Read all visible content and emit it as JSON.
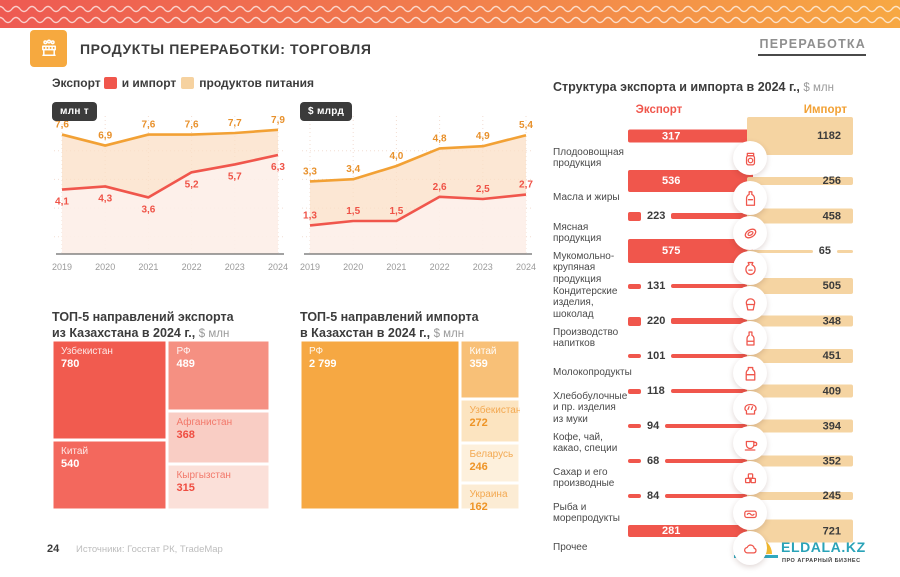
{
  "page": {
    "header": {
      "title": "ПРОДУКТЫ ПЕРЕРАБОТКИ: ТОРГОВЛЯ",
      "section_label": "ПЕРЕРАБОТКА"
    },
    "legend": {
      "export": "Экспорт",
      "mid": "и импорт",
      "tail": "продуктов питания"
    },
    "footer": {
      "page_number": "24",
      "source": "Источники: Госстат РК, TradeMap"
    },
    "logo": {
      "text": "ElDala.kz",
      "tagline": "Про аграрный бизнес"
    }
  },
  "colors": {
    "export_red": "#f0564c",
    "import_orange": "#f2a135",
    "import_bar_beige": "#f5d4a2",
    "dark_text": "#3b3b3b",
    "gray_text": "#9a9a9a"
  },
  "chart_data": [
    {
      "type": "line",
      "badge": "млн т",
      "title": "Экспорт и импорт продуктов питания",
      "x": [
        "2019",
        "2020",
        "2021",
        "2022",
        "2023",
        "2024"
      ],
      "ylim": [
        0,
        8.4
      ],
      "export_labels": "below",
      "series": [
        {
          "name": "Импорт",
          "color": "#f2a135",
          "label_color": "#e8912c",
          "values": [
            7.6,
            6.9,
            7.6,
            7.6,
            7.7,
            7.9
          ]
        },
        {
          "name": "Экспорт",
          "color": "#f0564c",
          "label_color": "#ef5347",
          "values": [
            4.1,
            4.3,
            3.6,
            5.2,
            5.7,
            6.3
          ]
        }
      ]
    },
    {
      "type": "line",
      "badge": "$ млрд",
      "title": "Экспорт и импорт продуктов питания",
      "x": [
        "2019",
        "2020",
        "2021",
        "2022",
        "2023",
        "2024"
      ],
      "ylim": [
        0,
        6.0
      ],
      "export_labels": "above",
      "series": [
        {
          "name": "Импорт",
          "color": "#f2a135",
          "label_color": "#e8912c",
          "values": [
            3.3,
            3.4,
            4.0,
            4.8,
            4.9,
            5.4
          ]
        },
        {
          "name": "Экспорт",
          "color": "#f0564c",
          "label_color": "#ef5347",
          "values": [
            1.3,
            1.5,
            1.5,
            2.6,
            2.5,
            2.7
          ]
        }
      ]
    },
    {
      "type": "treemap",
      "title_line1": "ТОП-5 направлений экспорта",
      "title_line2": "из Казахстана в 2024 г.,",
      "unit": "$ млн",
      "columns": [
        [
          0,
          1
        ],
        [
          2,
          3,
          4
        ]
      ],
      "items": [
        {
          "label": "Узбекистан",
          "value": 780,
          "display": "780",
          "bg": "#f15b4f",
          "label_color": "rgba(255,255,255,.85)",
          "value_color": "#ffffff"
        },
        {
          "label": "Китай",
          "value": 540,
          "display": "540",
          "bg": "#f3685d",
          "label_color": "rgba(255,255,255,.85)",
          "value_color": "#ffffff"
        },
        {
          "label": "РФ",
          "value": 489,
          "display": "489",
          "bg": "#f59082",
          "label_color": "rgba(255,255,255,.9)",
          "value_color": "#ffffff"
        },
        {
          "label": "Афганистан",
          "value": 368,
          "display": "368",
          "bg": "#f9cdc4",
          "label_color": "#f2786a",
          "value_color": "#ef4d41"
        },
        {
          "label": "Кыргызстан",
          "value": 315,
          "display": "315",
          "bg": "#fbe0d9",
          "label_color": "#f2786a",
          "value_color": "#ef4d41"
        }
      ]
    },
    {
      "type": "treemap",
      "title_line1": "ТОП-5 направлений импорта",
      "title_line2": "в Казахстан в 2024 г.,",
      "unit": "$ млн",
      "columns": [
        [
          0
        ],
        [
          1,
          2,
          3,
          4
        ]
      ],
      "items": [
        {
          "label": "РФ",
          "value": 2799,
          "display": "2 799",
          "bg": "#f6a843",
          "label_color": "rgba(255,255,255,.9)",
          "value_color": "#ffffff"
        },
        {
          "label": "Китай",
          "value": 359,
          "display": "359",
          "bg": "#f8c077",
          "label_color": "rgba(255,255,255,.95)",
          "value_color": "#ffffff"
        },
        {
          "label": "Узбекистан",
          "value": 272,
          "display": "272",
          "bg": "#fce4c0",
          "label_color": "#f3a952",
          "value_color": "#ee9426"
        },
        {
          "label": "Беларусь",
          "value": 246,
          "display": "246",
          "bg": "#fdf0dc",
          "label_color": "#f3a952",
          "value_color": "#ee9426"
        },
        {
          "label": "Украина",
          "value": 162,
          "display": "162",
          "bg": "#fcecd4",
          "label_color": "#f3a952",
          "value_color": "#ee9426"
        }
      ]
    },
    {
      "type": "bidirectional-bar",
      "title": "Структура экспорта и импорта в 2024 г.,",
      "unit": "$ млн",
      "col_headers": {
        "export": "Экспорт",
        "import": "Импорт"
      },
      "max": {
        "export": 575,
        "import": 1182
      },
      "rows": [
        {
          "label": "Плодоовощная продукция",
          "icon": "jam-jar-icon",
          "export": 317,
          "import": 1182
        },
        {
          "label": "Масла и жиры",
          "icon": "oil-bottle-icon",
          "export": 536,
          "import": 256
        },
        {
          "label": "Мясная продукция",
          "icon": "meat-icon",
          "export": 223,
          "import": 458
        },
        {
          "label": "Мукомольно-крупяная продукция",
          "icon": "flour-icon",
          "export": 575,
          "import": 65
        },
        {
          "label": "Кондитерские изделия, шоколад",
          "icon": "cupcake-icon",
          "export": 131,
          "import": 505
        },
        {
          "label": "Производство напитков",
          "icon": "drink-bottle-icon",
          "export": 220,
          "import": 348
        },
        {
          "label": "Молокопродукты",
          "icon": "milk-icon",
          "export": 101,
          "import": 451
        },
        {
          "label": "Хлебобулочные и пр. изделия из муки",
          "icon": "bread-icon",
          "export": 118,
          "import": 409
        },
        {
          "label": "Кофе, чай, какао, специи",
          "icon": "coffee-icon",
          "export": 94,
          "import": 394
        },
        {
          "label": "Сахар и его производные",
          "icon": "sugar-icon",
          "export": 68,
          "import": 352
        },
        {
          "label": "Рыба и морепродукты",
          "icon": "fish-icon",
          "export": 84,
          "import": 245
        },
        {
          "label": "Прочее",
          "icon": "other-icon",
          "export": 281,
          "import": 721
        }
      ]
    }
  ]
}
